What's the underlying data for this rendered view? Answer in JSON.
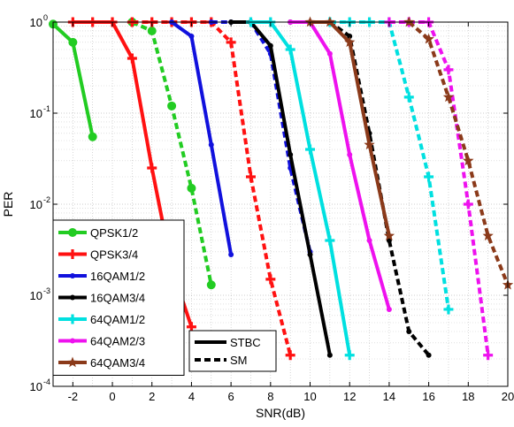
{
  "chart_data": {
    "type": "line",
    "xlabel": "SNR(dB)",
    "ylabel": "PER",
    "x_scale": "linear",
    "y_scale": "log",
    "xlim": [
      -3,
      20
    ],
    "ylim": [
      0.0001,
      1
    ],
    "x_ticks": [
      -2,
      0,
      2,
      4,
      6,
      8,
      10,
      12,
      14,
      16,
      18,
      20
    ],
    "y_ticks": [
      {
        "value": 1,
        "label": "10",
        "exp": "0"
      },
      {
        "value": 0.1,
        "label": "10",
        "exp": "-1"
      },
      {
        "value": 0.01,
        "label": "10",
        "exp": "-2"
      },
      {
        "value": 0.001,
        "label": "10",
        "exp": "-3"
      },
      {
        "value": 0.0001,
        "label": "10",
        "exp": "-4"
      }
    ],
    "grid": "on (major and minor, dotted)",
    "legend_placement": "lower-left",
    "series": [
      {
        "name": "QPSK1/2",
        "scheme": "STBC",
        "color": "#22cc22",
        "marker": "circle",
        "x": [
          -3,
          -2,
          -1
        ],
        "y": [
          0.95,
          0.6,
          0.055
        ]
      },
      {
        "name": "QPSK1/2",
        "scheme": "SM",
        "color": "#22cc22",
        "marker": "circle",
        "x": [
          1,
          2,
          3,
          4,
          5
        ],
        "y": [
          1,
          0.8,
          0.12,
          0.015,
          0.0013
        ]
      },
      {
        "name": "QPSK3/4",
        "scheme": "STBC",
        "color": "#ff1111",
        "marker": "plus",
        "x": [
          -2,
          -1,
          0,
          1,
          2,
          3,
          4
        ],
        "y": [
          1,
          1,
          1,
          0.4,
          0.025,
          0.002,
          0.00045
        ]
      },
      {
        "name": "QPSK3/4",
        "scheme": "SM",
        "color": "#ff1111",
        "marker": "plus",
        "x": [
          1,
          2,
          3,
          4,
          5,
          6,
          7,
          8,
          9
        ],
        "y": [
          1,
          1,
          1,
          1,
          1,
          0.6,
          0.02,
          0.0015,
          0.00022
        ]
      },
      {
        "name": "16QAM1/2",
        "scheme": "STBC",
        "color": "#1111dd",
        "marker": "dot",
        "x": [
          3,
          4,
          5,
          6
        ],
        "y": [
          1,
          0.7,
          0.045,
          0.0028
        ]
      },
      {
        "name": "16QAM1/2",
        "scheme": "SM",
        "color": "#1111dd",
        "marker": "dot",
        "x": [
          5,
          6,
          7,
          8,
          9,
          10
        ],
        "y": [
          1,
          1,
          1,
          0.45,
          0.025,
          0.003
        ]
      },
      {
        "name": "16QAM3/4",
        "scheme": "STBC",
        "color": "#000000",
        "marker": "dot",
        "x": [
          6,
          7,
          8,
          9,
          10,
          11
        ],
        "y": [
          1,
          1,
          0.55,
          0.035,
          0.0028,
          0.00022
        ]
      },
      {
        "name": "16QAM3/4",
        "scheme": "SM",
        "color": "#000000",
        "marker": "dot",
        "x": [
          9,
          10,
          11,
          12,
          13,
          14,
          15,
          16
        ],
        "y": [
          1,
          1,
          1,
          0.7,
          0.06,
          0.004,
          0.0004,
          0.00022
        ]
      },
      {
        "name": "64QAM1/2",
        "scheme": "STBC",
        "color": "#00e0e0",
        "marker": "plus",
        "x": [
          7,
          8,
          9,
          10,
          11,
          12
        ],
        "y": [
          1,
          1,
          0.5,
          0.04,
          0.004,
          0.00022
        ]
      },
      {
        "name": "64QAM1/2",
        "scheme": "SM",
        "color": "#00e0e0",
        "marker": "plus",
        "x": [
          11,
          12,
          13,
          14,
          15,
          16,
          17
        ],
        "y": [
          1,
          1,
          1,
          1,
          0.15,
          0.02,
          0.0007
        ]
      },
      {
        "name": "64QAM2/3",
        "scheme": "STBC",
        "color": "#ee11ee",
        "marker": "dot",
        "x": [
          9,
          10,
          11,
          12,
          13,
          14
        ],
        "y": [
          1,
          1,
          0.45,
          0.035,
          0.004,
          0.0007
        ]
      },
      {
        "name": "64QAM2/3",
        "scheme": "SM",
        "color": "#ee11ee",
        "marker": "plus",
        "x": [
          14,
          15,
          16,
          17,
          18,
          19
        ],
        "y": [
          1,
          1,
          1,
          0.3,
          0.01,
          0.00022
        ]
      },
      {
        "name": "64QAM3/4",
        "scheme": "STBC",
        "color": "#8b3a1a",
        "marker": "star",
        "x": [
          10,
          11,
          12,
          13,
          14
        ],
        "y": [
          1,
          1,
          0.6,
          0.045,
          0.0045
        ]
      },
      {
        "name": "64QAM3/4",
        "scheme": "SM",
        "color": "#8b3a1a",
        "marker": "star",
        "x": [
          15,
          16,
          17,
          18,
          19,
          20
        ],
        "y": [
          1,
          0.65,
          0.15,
          0.03,
          0.0045,
          0.0013
        ]
      }
    ],
    "legend": [
      {
        "label": "QPSK1/2",
        "color": "#22cc22",
        "marker": "circle"
      },
      {
        "label": "QPSK3/4",
        "color": "#ff1111",
        "marker": "plus"
      },
      {
        "label": "16QAM1/2",
        "color": "#1111dd",
        "marker": "dot"
      },
      {
        "label": "16QAM3/4",
        "color": "#000000",
        "marker": "dot"
      },
      {
        "label": "64QAM1/2",
        "color": "#00e0e0",
        "marker": "plus"
      },
      {
        "label": "64QAM2/3",
        "color": "#ee11ee",
        "marker": "dot"
      },
      {
        "label": "64QAM3/4",
        "color": "#8b3a1a",
        "marker": "star"
      }
    ],
    "style_legend": [
      {
        "label": "STBC",
        "line": "solid"
      },
      {
        "label": "SM",
        "line": "dashed"
      }
    ]
  }
}
